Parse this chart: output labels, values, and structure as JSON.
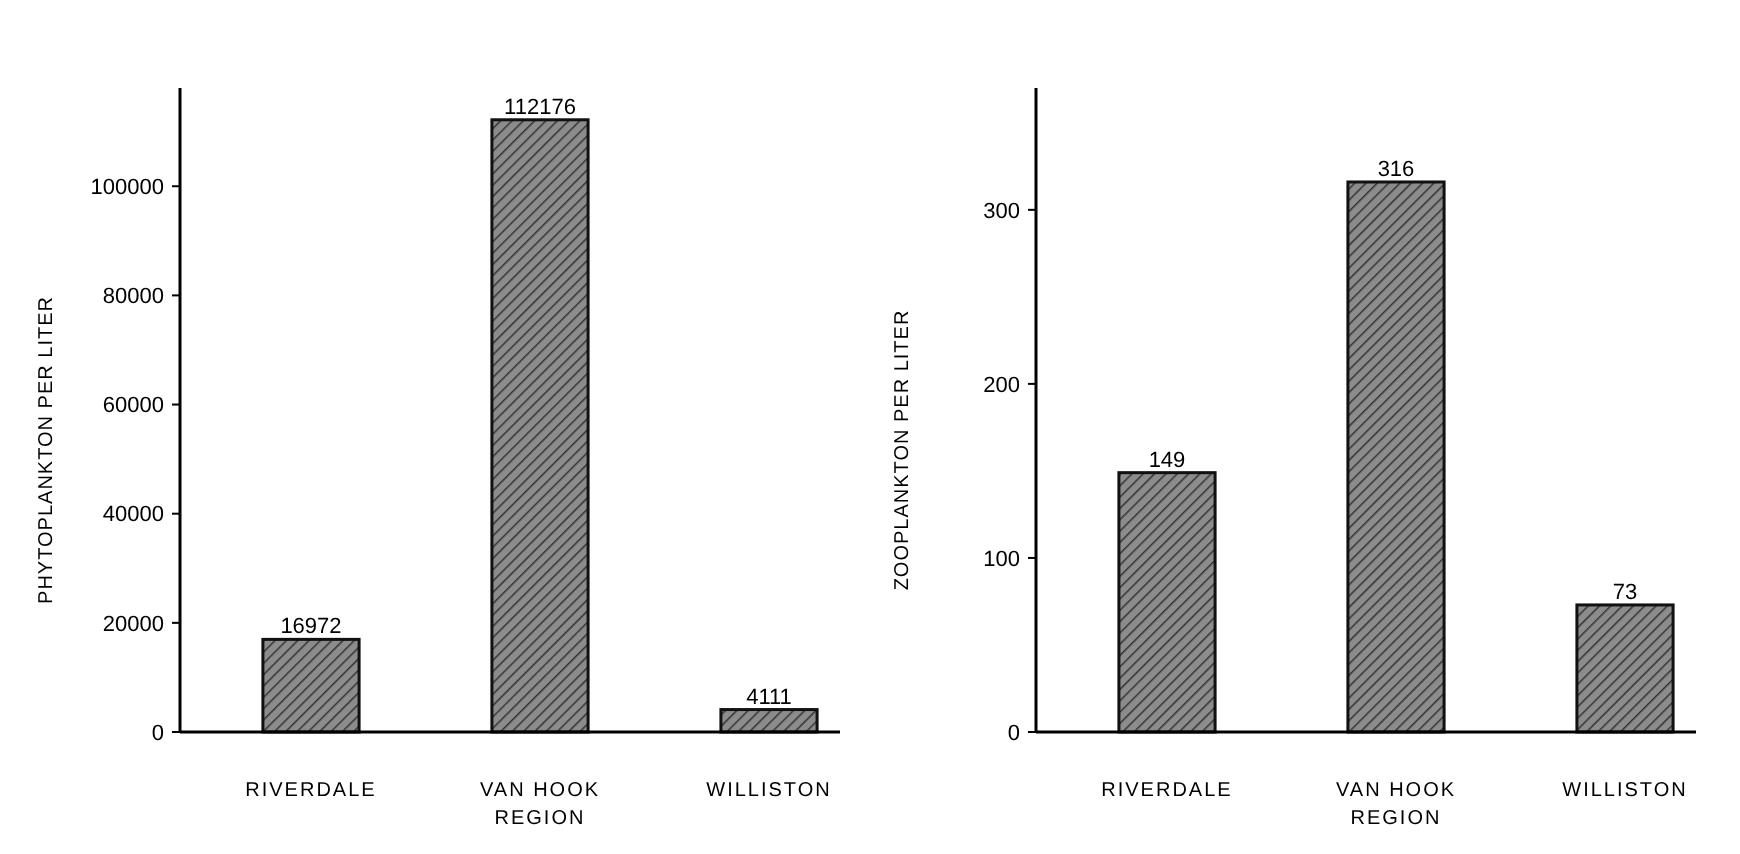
{
  "chart_data": [
    {
      "type": "bar",
      "categories": [
        "RIVERDALE",
        "VAN HOOK",
        "WILLISTON"
      ],
      "values": [
        16972,
        112176,
        4111
      ],
      "color": "#8c8c8c",
      "xlabel": "REGION",
      "ylabel": "PHYTOPLANKTON PER LITER",
      "ylim": [
        0,
        118000
      ],
      "yticks": [
        0,
        20000,
        40000,
        60000,
        80000,
        100000
      ],
      "data_labels": true
    },
    {
      "type": "bar",
      "categories": [
        "RIVERDALE",
        "VAN HOOK",
        "WILLISTON"
      ],
      "values": [
        149,
        316,
        73
      ],
      "color": "#8c8c8c",
      "xlabel": "REGION",
      "ylabel": "ZOOPLANKTON PER LITER",
      "ylim": [
        0,
        370
      ],
      "yticks": [
        0,
        100,
        200,
        300
      ],
      "data_labels": true
    }
  ]
}
